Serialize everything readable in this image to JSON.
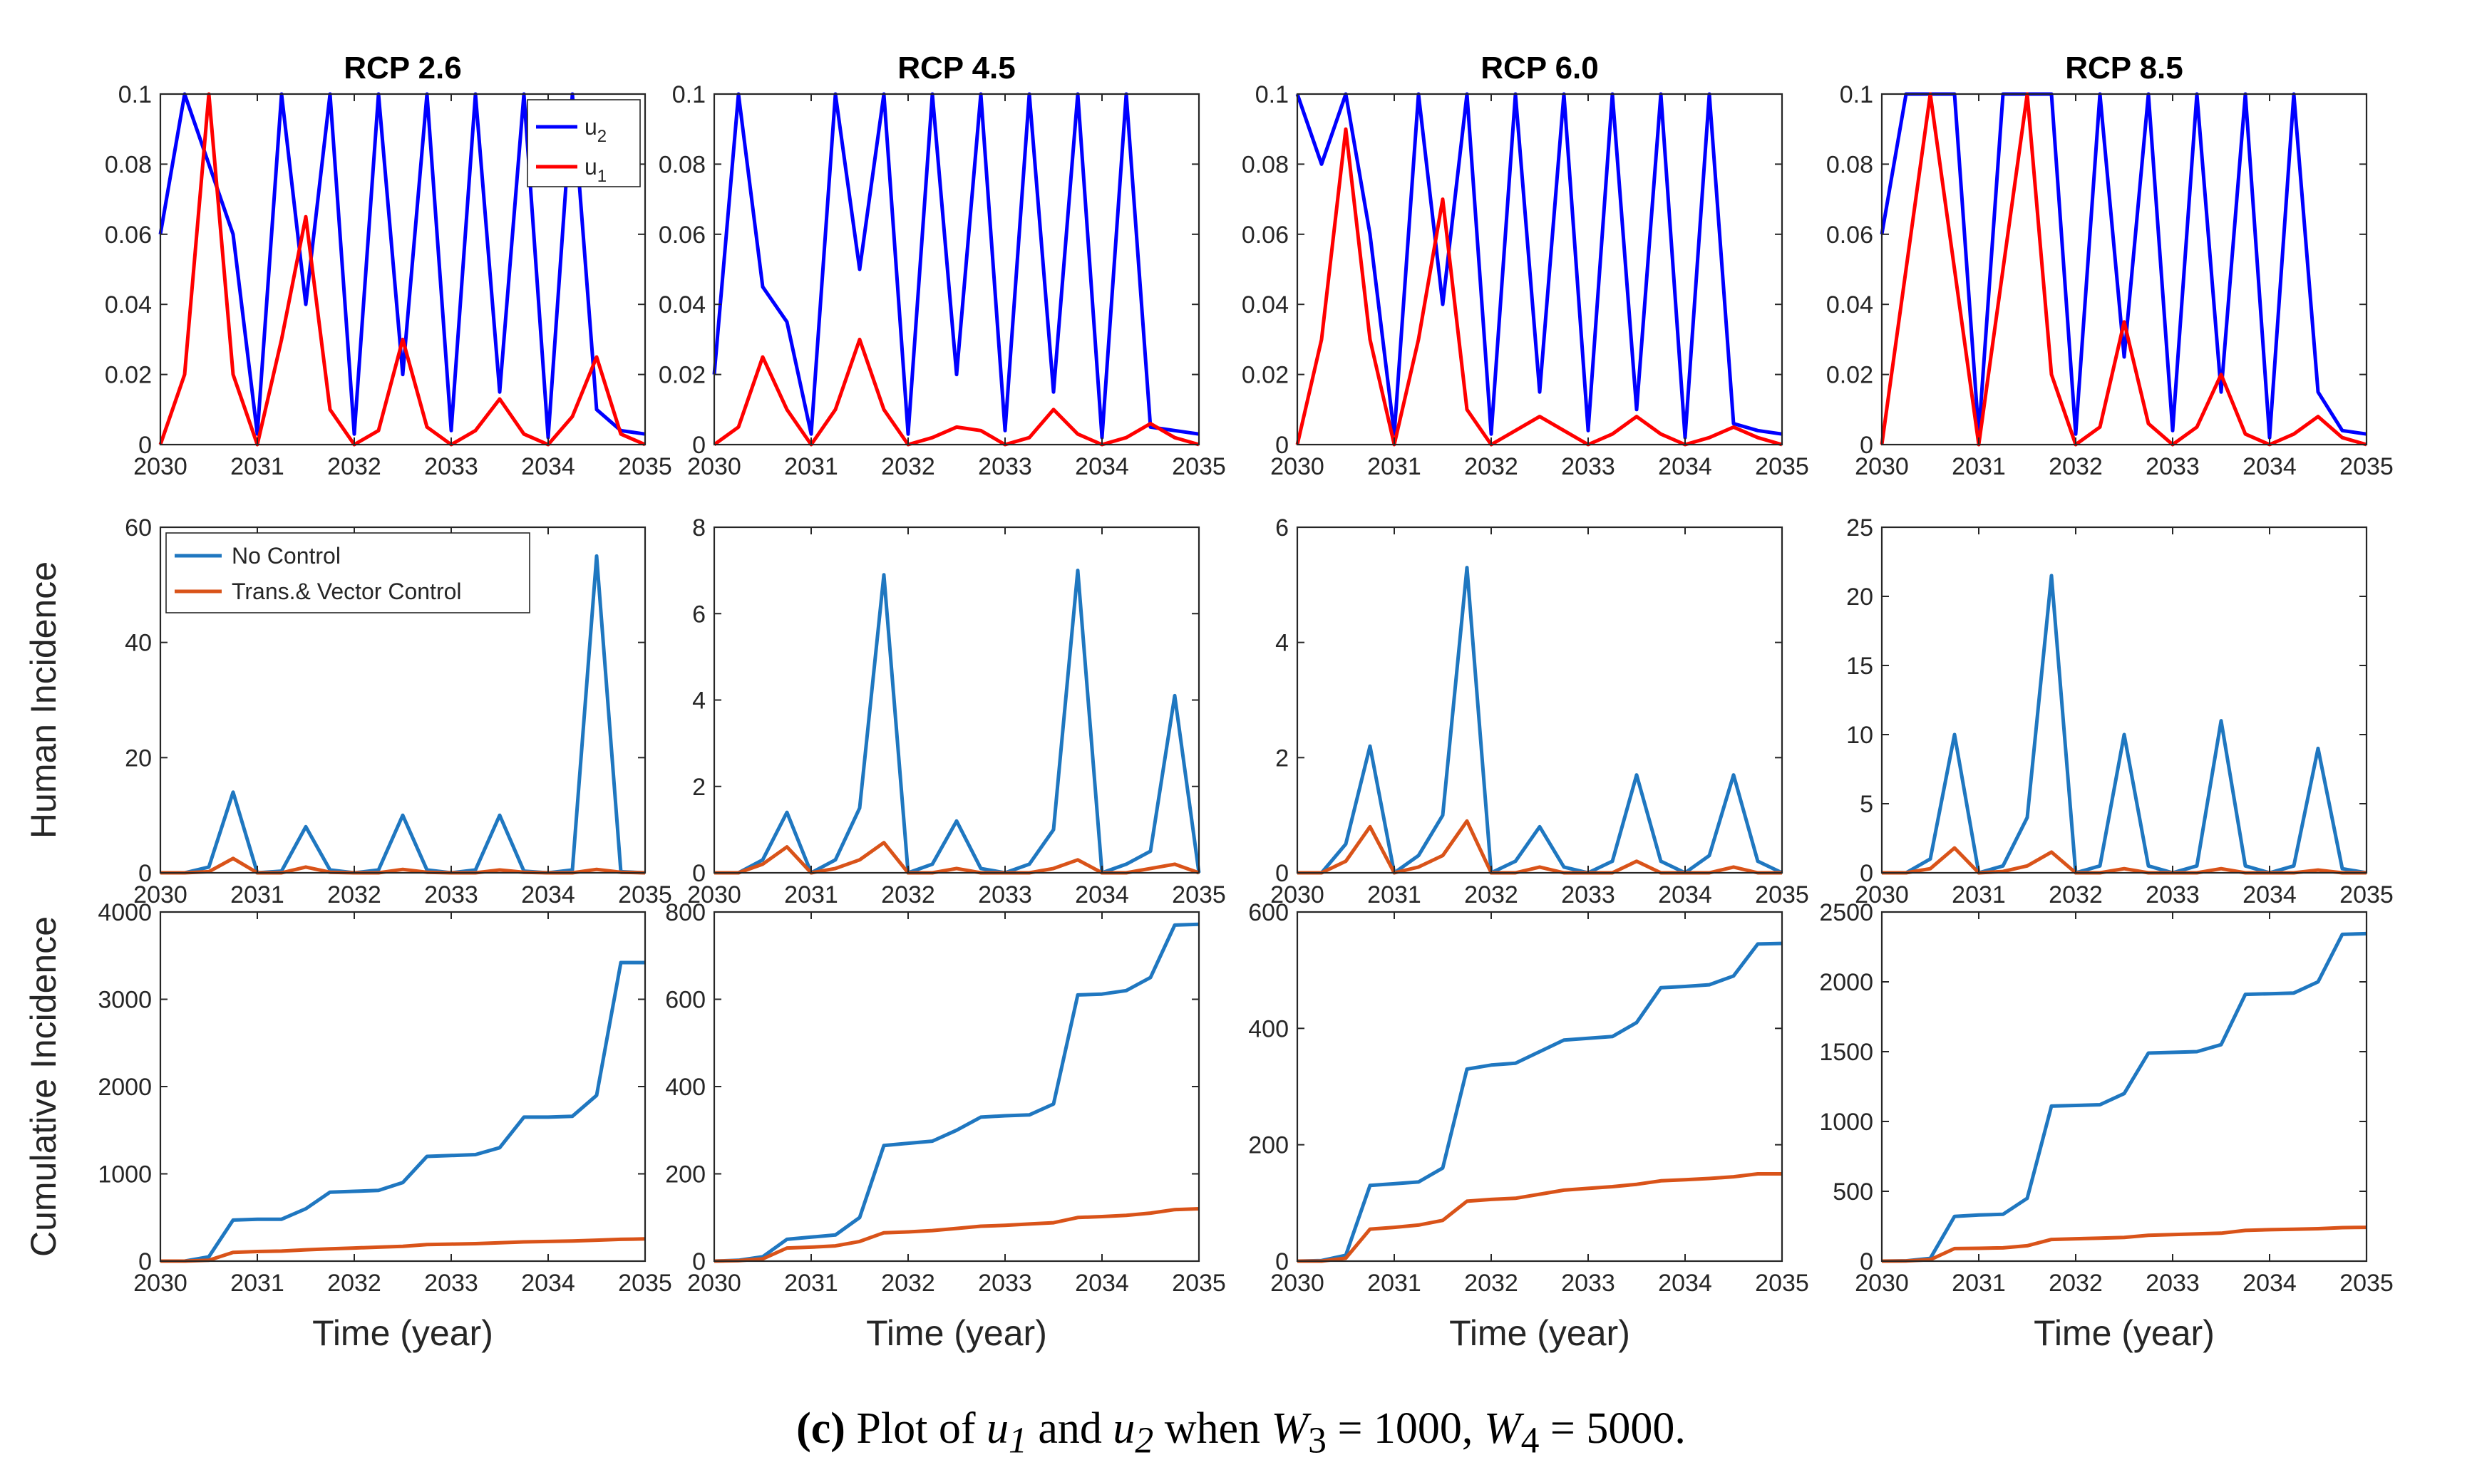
{
  "chart_data": {
    "type": "line",
    "layout": "3 rows x 4 columns grid of subplots",
    "column_titles": [
      "RCP 2.6",
      "RCP 4.5",
      "RCP 6.0",
      "RCP 8.5"
    ],
    "x": [
      2030,
      2030.25,
      2030.5,
      2030.75,
      2031,
      2031.25,
      2031.5,
      2031.75,
      2032,
      2032.25,
      2032.5,
      2032.75,
      2033,
      2033.25,
      2033.5,
      2033.75,
      2034,
      2034.25,
      2034.5,
      2034.75,
      2035
    ],
    "xlabel": "Time (year)",
    "xlim": [
      2030,
      2035
    ],
    "xticks": [
      "2030",
      "2031",
      "2032",
      "2033",
      "2034",
      "2035"
    ],
    "rows": [
      {
        "ylabel": "",
        "legend": [
          "u2",
          "u1"
        ],
        "legend_subscripts": [
          "2",
          "1"
        ],
        "legend_base": "u",
        "legend_placement": "top-right of first panel",
        "colors": [
          "#0000ff",
          "#ff0000"
        ],
        "panels": [
          {
            "title": "RCP 2.6",
            "ylim": [
              0,
              0.1
            ],
            "yticks": [
              "0",
              "0.02",
              "0.04",
              "0.06",
              "0.08",
              "0.1"
            ],
            "series": [
              {
                "name": "u2",
                "values": [
                  0.06,
                  0.1,
                  0.08,
                  0.06,
                  0.003,
                  0.1,
                  0.04,
                  0.1,
                  0.003,
                  0.1,
                  0.02,
                  0.1,
                  0.004,
                  0.1,
                  0.015,
                  0.1,
                  0.002,
                  0.1,
                  0.01,
                  0.004,
                  0.003
                ]
              },
              {
                "name": "u1",
                "values": [
                  0,
                  0.02,
                  0.1,
                  0.02,
                  0,
                  0.03,
                  0.065,
                  0.01,
                  0,
                  0.004,
                  0.03,
                  0.005,
                  0,
                  0.004,
                  0.013,
                  0.003,
                  0,
                  0.008,
                  0.025,
                  0.003,
                  0
                ]
              }
            ]
          },
          {
            "title": "RCP 4.5",
            "ylim": [
              0,
              0.1
            ],
            "yticks": [
              "0",
              "0.02",
              "0.04",
              "0.06",
              "0.08",
              "0.1"
            ],
            "series": [
              {
                "name": "u2",
                "values": [
                  0.02,
                  0.1,
                  0.045,
                  0.035,
                  0.003,
                  0.1,
                  0.05,
                  0.1,
                  0.003,
                  0.1,
                  0.02,
                  0.1,
                  0.004,
                  0.1,
                  0.015,
                  0.1,
                  0.002,
                  0.1,
                  0.005,
                  0.004,
                  0.003
                ]
              },
              {
                "name": "u1",
                "values": [
                  0,
                  0.005,
                  0.025,
                  0.01,
                  0,
                  0.01,
                  0.03,
                  0.01,
                  0,
                  0.002,
                  0.005,
                  0.004,
                  0,
                  0.002,
                  0.01,
                  0.003,
                  0,
                  0.002,
                  0.006,
                  0.002,
                  0
                ]
              }
            ]
          },
          {
            "title": "RCP 6.0",
            "ylim": [
              0,
              0.1
            ],
            "yticks": [
              "0",
              "0.02",
              "0.04",
              "0.06",
              "0.08",
              "0.1"
            ],
            "series": [
              {
                "name": "u2",
                "values": [
                  0.1,
                  0.08,
                  0.1,
                  0.06,
                  0.003,
                  0.1,
                  0.04,
                  0.1,
                  0.003,
                  0.1,
                  0.015,
                  0.1,
                  0.004,
                  0.1,
                  0.01,
                  0.1,
                  0.002,
                  0.1,
                  0.006,
                  0.004,
                  0.003
                ]
              },
              {
                "name": "u1",
                "values": [
                  0,
                  0.03,
                  0.09,
                  0.03,
                  0,
                  0.03,
                  0.07,
                  0.01,
                  0,
                  0.004,
                  0.008,
                  0.004,
                  0,
                  0.003,
                  0.008,
                  0.003,
                  0,
                  0.002,
                  0.005,
                  0.002,
                  0
                ]
              }
            ]
          },
          {
            "title": "RCP 8.5",
            "ylim": [
              0,
              0.1
            ],
            "yticks": [
              "0",
              "0.02",
              "0.04",
              "0.06",
              "0.08",
              "0.1"
            ],
            "series": [
              {
                "name": "u2",
                "values": [
                  0.06,
                  0.1,
                  0.1,
                  0.1,
                  0.003,
                  0.1,
                  0.1,
                  0.1,
                  0.003,
                  0.1,
                  0.025,
                  0.1,
                  0.004,
                  0.1,
                  0.015,
                  0.1,
                  0.002,
                  0.1,
                  0.015,
                  0.004,
                  0.003
                ]
              },
              {
                "name": "u1",
                "values": [
                  0,
                  0.05,
                  0.1,
                  0.05,
                  0,
                  0.05,
                  0.1,
                  0.02,
                  0,
                  0.005,
                  0.035,
                  0.006,
                  0,
                  0.005,
                  0.02,
                  0.003,
                  0,
                  0.003,
                  0.008,
                  0.002,
                  0
                ]
              }
            ]
          }
        ]
      },
      {
        "ylabel": "Human Incidence",
        "legend": [
          "No Control",
          "Trans.& Vector Control"
        ],
        "legend_placement": "top-left of first panel",
        "colors": [
          "#1f77c0",
          "#d95319"
        ],
        "panels": [
          {
            "title": "",
            "ylim": [
              0,
              60
            ],
            "yticks": [
              "0",
              "20",
              "40",
              "60"
            ],
            "series": [
              {
                "name": "No Control",
                "values": [
                  0,
                  0,
                  1,
                  14,
                  0,
                  0.3,
                  8,
                  0.5,
                  0,
                  0.5,
                  10,
                  0.5,
                  0,
                  0.5,
                  10,
                  0.3,
                  0,
                  0.5,
                  55,
                  0.2,
                  0
                ]
              },
              {
                "name": "Trans.& Vector Control",
                "values": [
                  0,
                  0,
                  0.2,
                  2.5,
                  0,
                  0,
                  1,
                  0.1,
                  0,
                  0,
                  0.6,
                  0.1,
                  0,
                  0,
                  0.5,
                  0.1,
                  0,
                  0,
                  0.6,
                  0.1,
                  0
                ]
              }
            ]
          },
          {
            "title": "",
            "ylim": [
              0,
              8
            ],
            "yticks": [
              "0",
              "2",
              "4",
              "6",
              "8"
            ],
            "series": [
              {
                "name": "No Control",
                "values": [
                  0,
                  0,
                  0.3,
                  1.4,
                  0,
                  0.3,
                  1.5,
                  6.9,
                  0,
                  0.2,
                  1.2,
                  0.1,
                  0,
                  0.2,
                  1.0,
                  7.0,
                  0,
                  0.2,
                  0.5,
                  4.1,
                  0
                ]
              },
              {
                "name": "Trans.& Vector Control",
                "values": [
                  0,
                  0,
                  0.2,
                  0.6,
                  0,
                  0.1,
                  0.3,
                  0.7,
                  0,
                  0,
                  0.1,
                  0,
                  0,
                  0,
                  0.1,
                  0.3,
                  0,
                  0,
                  0.1,
                  0.2,
                  0
                ]
              }
            ]
          },
          {
            "title": "",
            "ylim": [
              0,
              6
            ],
            "yticks": [
              "0",
              "2",
              "4",
              "6"
            ],
            "series": [
              {
                "name": "No Control",
                "values": [
                  0,
                  0,
                  0.5,
                  2.2,
                  0,
                  0.3,
                  1.0,
                  5.3,
                  0,
                  0.2,
                  0.8,
                  0.1,
                  0,
                  0.2,
                  1.7,
                  0.2,
                  0,
                  0.3,
                  1.7,
                  0.2,
                  0
                ]
              },
              {
                "name": "Trans.& Vector Control",
                "values": [
                  0,
                  0,
                  0.2,
                  0.8,
                  0,
                  0.1,
                  0.3,
                  0.9,
                  0,
                  0,
                  0.1,
                  0,
                  0,
                  0,
                  0.2,
                  0,
                  0,
                  0,
                  0.1,
                  0,
                  0
                ]
              }
            ]
          },
          {
            "title": "",
            "ylim": [
              0,
              25
            ],
            "yticks": [
              "0",
              "5",
              "10",
              "15",
              "20",
              "25"
            ],
            "series": [
              {
                "name": "No Control",
                "values": [
                  0,
                  0,
                  1,
                  10,
                  0,
                  0.5,
                  4,
                  21.5,
                  0,
                  0.5,
                  10,
                  0.5,
                  0,
                  0.5,
                  11,
                  0.5,
                  0,
                  0.5,
                  9,
                  0.3,
                  0
                ]
              },
              {
                "name": "Trans.& Vector Control",
                "values": [
                  0,
                  0,
                  0.3,
                  1.8,
                  0,
                  0.1,
                  0.5,
                  1.5,
                  0,
                  0,
                  0.3,
                  0,
                  0,
                  0,
                  0.3,
                  0,
                  0,
                  0,
                  0.2,
                  0,
                  0
                ]
              }
            ]
          }
        ]
      },
      {
        "ylabel": "Cumulative Incidence",
        "legend": [
          "No Control",
          "Trans.& Vector Control"
        ],
        "colors": [
          "#1f77c0",
          "#d95319"
        ],
        "panels": [
          {
            "title": "",
            "ylim": [
              0,
              4000
            ],
            "yticks": [
              "0",
              "1000",
              "2000",
              "3000",
              "4000"
            ],
            "series": [
              {
                "name": "No Control",
                "values": [
                  0,
                  0,
                  50,
                  470,
                  480,
                  480,
                  600,
                  790,
                  800,
                  810,
                  900,
                  1200,
                  1210,
                  1220,
                  1300,
                  1650,
                  1650,
                  1660,
                  1900,
                  3420,
                  3420
                ]
              },
              {
                "name": "Trans.& Vector Control",
                "values": [
                  0,
                  0,
                  10,
                  100,
                  110,
                  115,
                  130,
                  140,
                  150,
                  160,
                  170,
                  190,
                  195,
                  200,
                  210,
                  220,
                  225,
                  230,
                  240,
                  250,
                  255
                ]
              }
            ]
          },
          {
            "title": "",
            "ylim": [
              0,
              800
            ],
            "yticks": [
              "0",
              "200",
              "400",
              "600",
              "800"
            ],
            "series": [
              {
                "name": "No Control",
                "values": [
                  0,
                  2,
                  10,
                  50,
                  55,
                  60,
                  100,
                  265,
                  270,
                  275,
                  300,
                  330,
                  333,
                  335,
                  360,
                  610,
                  612,
                  620,
                  650,
                  770,
                  772
                ]
              },
              {
                "name": "Trans.& Vector Control",
                "values": [
                  0,
                  1,
                  5,
                  30,
                  32,
                  35,
                  45,
                  65,
                  67,
                  70,
                  75,
                  80,
                  82,
                  85,
                  88,
                  100,
                  102,
                  105,
                  110,
                  118,
                  120
                ]
              }
            ]
          },
          {
            "title": "",
            "ylim": [
              0,
              600
            ],
            "yticks": [
              "0",
              "200",
              "400",
              "600"
            ],
            "series": [
              {
                "name": "No Control",
                "values": [
                  0,
                  1,
                  10,
                  130,
                  133,
                  136,
                  160,
                  330,
                  337,
                  340,
                  360,
                  380,
                  383,
                  386,
                  410,
                  470,
                  472,
                  475,
                  490,
                  545,
                  546
                ]
              },
              {
                "name": "Trans.& Vector Control",
                "values": [
                  0,
                  0,
                  5,
                  55,
                  58,
                  62,
                  70,
                  103,
                  106,
                  108,
                  115,
                  122,
                  125,
                  128,
                  132,
                  138,
                  140,
                  142,
                  145,
                  150,
                  150
                ]
              }
            ]
          },
          {
            "title": "",
            "ylim": [
              0,
              2500
            ],
            "yticks": [
              "0",
              "500",
              "1000",
              "1500",
              "2000",
              "2500"
            ],
            "series": [
              {
                "name": "No Control",
                "values": [
                  0,
                  2,
                  20,
                  320,
                  330,
                  335,
                  450,
                  1110,
                  1115,
                  1120,
                  1200,
                  1490,
                  1495,
                  1500,
                  1550,
                  1910,
                  1915,
                  1920,
                  2000,
                  2340,
                  2345
                ]
              },
              {
                "name": "Trans.& Vector Control",
                "values": [
                  0,
                  1,
                  10,
                  90,
                  92,
                  95,
                  110,
                  155,
                  160,
                  165,
                  170,
                  185,
                  190,
                  195,
                  200,
                  220,
                  225,
                  228,
                  232,
                  240,
                  242
                ]
              }
            ]
          }
        ]
      }
    ]
  },
  "caption": {
    "label": "(c)",
    "text_before": "Plot of",
    "u": "u",
    "sub1": "1",
    "and": "and",
    "sub2": "2",
    "when": "when",
    "w": "W",
    "sub3": "3",
    "eq3": "= 1000,",
    "sub4": "4",
    "eq4": "= 5000."
  }
}
